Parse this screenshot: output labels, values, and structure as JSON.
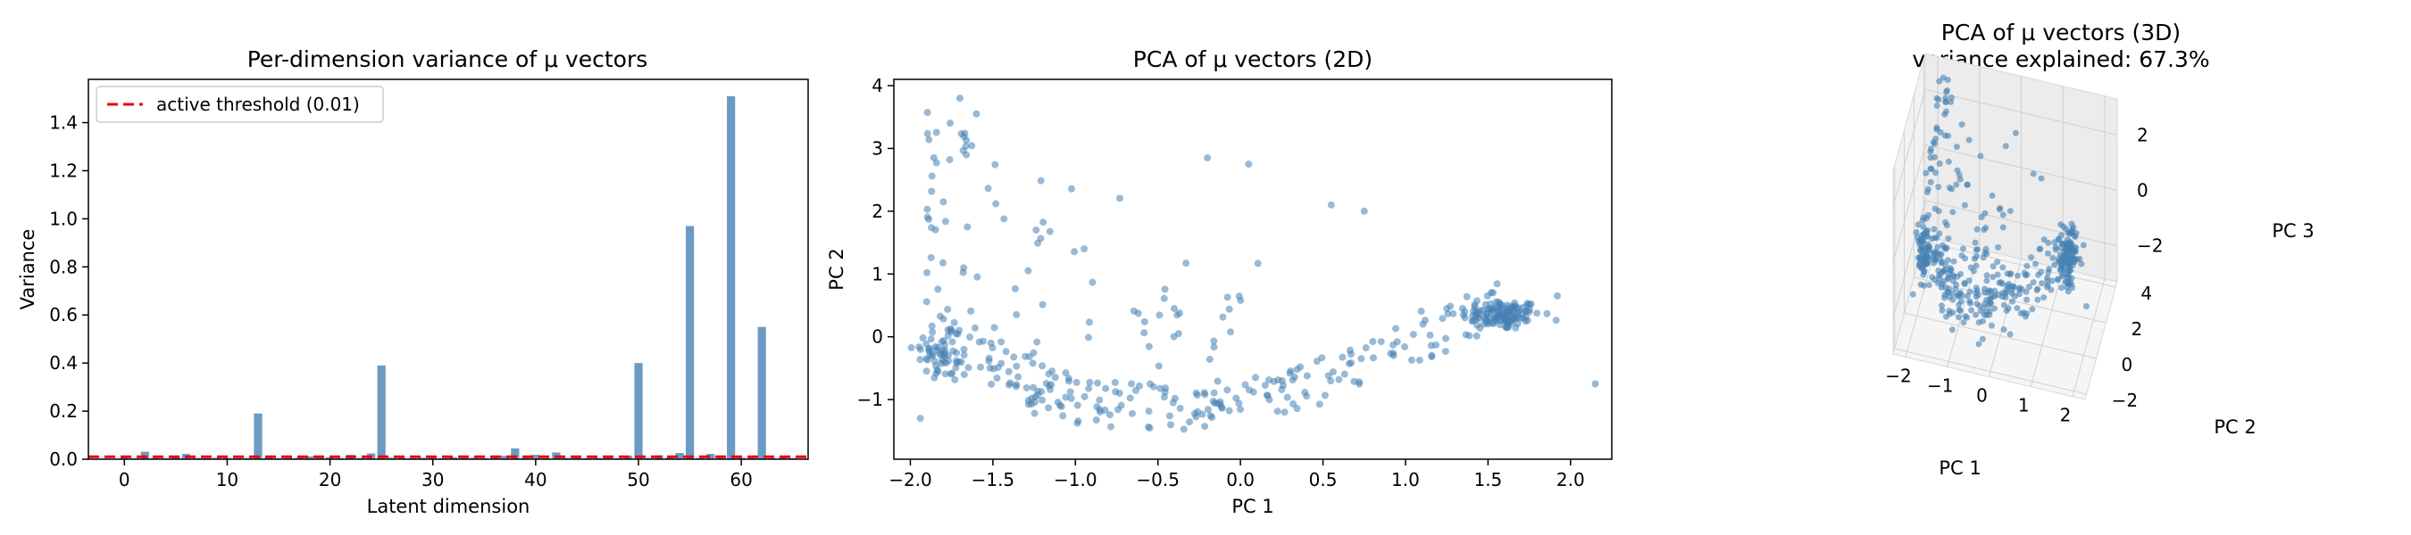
{
  "chart_data": [
    {
      "type": "bar",
      "title": "Per-dimension variance of μ vectors",
      "xlabel": "Latent dimension",
      "ylabel": "Variance",
      "xlim": [
        -3.5,
        66.5
      ],
      "ylim": [
        0,
        1.58
      ],
      "xticks": [
        0,
        10,
        20,
        30,
        40,
        50,
        60
      ],
      "yticks": [
        0.0,
        0.2,
        0.4,
        0.6,
        0.8,
        1.0,
        1.2,
        1.4
      ],
      "bar_color": "#4682b4",
      "threshold": {
        "label": "active threshold (0.01)",
        "value": 0.01,
        "color": "#e8000b"
      },
      "legend_position": "upper-left",
      "values": [
        0.006,
        0.004,
        0.031,
        0.005,
        0.004,
        0.006,
        0.022,
        0.005,
        0.004,
        0.006,
        0.005,
        0.004,
        0.005,
        0.19,
        0.006,
        0.004,
        0.005,
        0.006,
        0.012,
        0.005,
        0.008,
        0.004,
        0.018,
        0.005,
        0.024,
        0.39,
        0.006,
        0.005,
        0.004,
        0.006,
        0.005,
        0.004,
        0.008,
        0.005,
        0.006,
        0.004,
        0.006,
        0.014,
        0.045,
        0.005,
        0.018,
        0.004,
        0.028,
        0.005,
        0.006,
        0.004,
        0.005,
        0.006,
        0.004,
        0.014,
        0.4,
        0.005,
        0.016,
        0.006,
        0.026,
        0.97,
        0.005,
        0.022,
        0.005,
        1.51,
        0.006,
        0.005,
        0.55,
        0.004,
        0.006,
        0.005
      ]
    },
    {
      "type": "scatter",
      "title": "PCA of μ vectors (2D)",
      "xlabel": "PC 1",
      "ylabel": "PC 2",
      "xlim": [
        -2.1,
        2.25
      ],
      "ylim": [
        -1.95,
        4.1
      ],
      "xticks": [
        -2.0,
        -1.5,
        -1.0,
        -0.5,
        0.0,
        0.5,
        1.0,
        1.5,
        2.0
      ],
      "yticks": [
        -1,
        0,
        1,
        2,
        3,
        4
      ],
      "point_color": "#4682b4",
      "n_points": 500,
      "note_points": "points generated procedurally by script: curved U-shaped band from (-1.9, 0) down to (-0.6, -1.3) and up to (1.6, 0.35), plus scattered points above"
    },
    {
      "type": "scatter3d",
      "title": "PCA of μ vectors (3D)",
      "subtitle": "variance explained: 67.3%",
      "xlabel": "PC 1",
      "ylabel": "PC 2",
      "zlabel": "PC 3",
      "xticks": [
        -2,
        -1,
        0,
        1,
        2
      ],
      "yticks": [
        -2,
        0,
        2,
        4
      ],
      "zticks": [
        -2,
        0,
        2
      ],
      "point_color": "#4682b4",
      "n_points": 500
    }
  ]
}
